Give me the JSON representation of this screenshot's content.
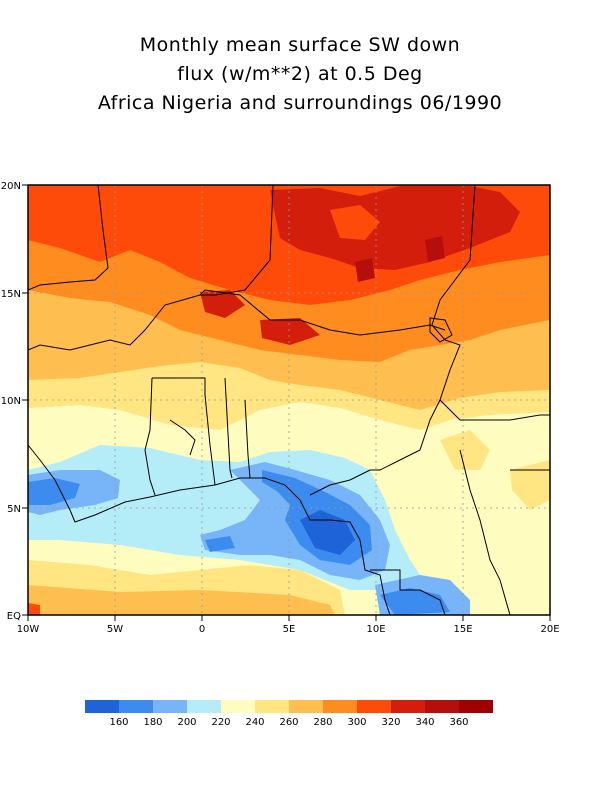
{
  "title": {
    "line1": "Monthly mean surface SW down",
    "line2": "flux (w/m**2) at 0.5 Deg",
    "line3": "Africa Nigeria and surroundings 06/1990"
  },
  "map": {
    "lon_range": [
      -10,
      20
    ],
    "lat_range": [
      0,
      20
    ],
    "grid": true,
    "x_ticks": [
      "10W",
      "5W",
      "0",
      "5E",
      "10E",
      "15E",
      "20E"
    ],
    "y_ticks": [
      "EQ",
      "5N",
      "10N",
      "15N",
      "20N"
    ]
  },
  "colorbar": {
    "labels": [
      "160",
      "180",
      "200",
      "220",
      "240",
      "260",
      "280",
      "300",
      "320",
      "340",
      "360"
    ],
    "colors": [
      "#1e64d8",
      "#3c8cf0",
      "#78b4f8",
      "#b4ecf8",
      "#fffcc0",
      "#ffe682",
      "#ffbe50",
      "#ff8c1e",
      "#ff4b0a",
      "#d21e0a",
      "#b40f0a",
      "#a00000"
    ]
  }
}
